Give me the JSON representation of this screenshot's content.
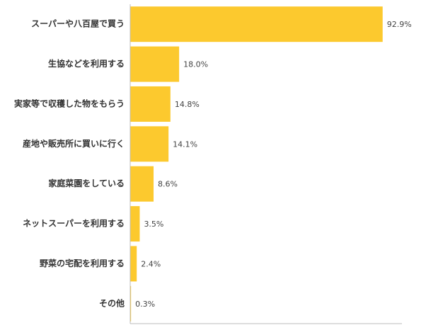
{
  "chart_data": {
    "type": "bar",
    "orientation": "horizontal",
    "categories": [
      "スーパーや八百屋で買う",
      "生協などを利用する",
      "実家等で収穫した物をもらう",
      "産地や販売所に買いに行く",
      "家庭菜園をしている",
      "ネットスーパーを利用する",
      "野菜の宅配を利用する",
      "その他"
    ],
    "values": [
      92.9,
      18.0,
      14.8,
      14.1,
      8.6,
      3.5,
      2.4,
      0.3
    ],
    "value_labels": [
      "92.9%",
      "18.0%",
      "14.8%",
      "14.1%",
      "8.6%",
      "3.5%",
      "2.4%",
      "0.3%"
    ],
    "color": "#fcc92e",
    "xlim": [
      0,
      100
    ]
  }
}
